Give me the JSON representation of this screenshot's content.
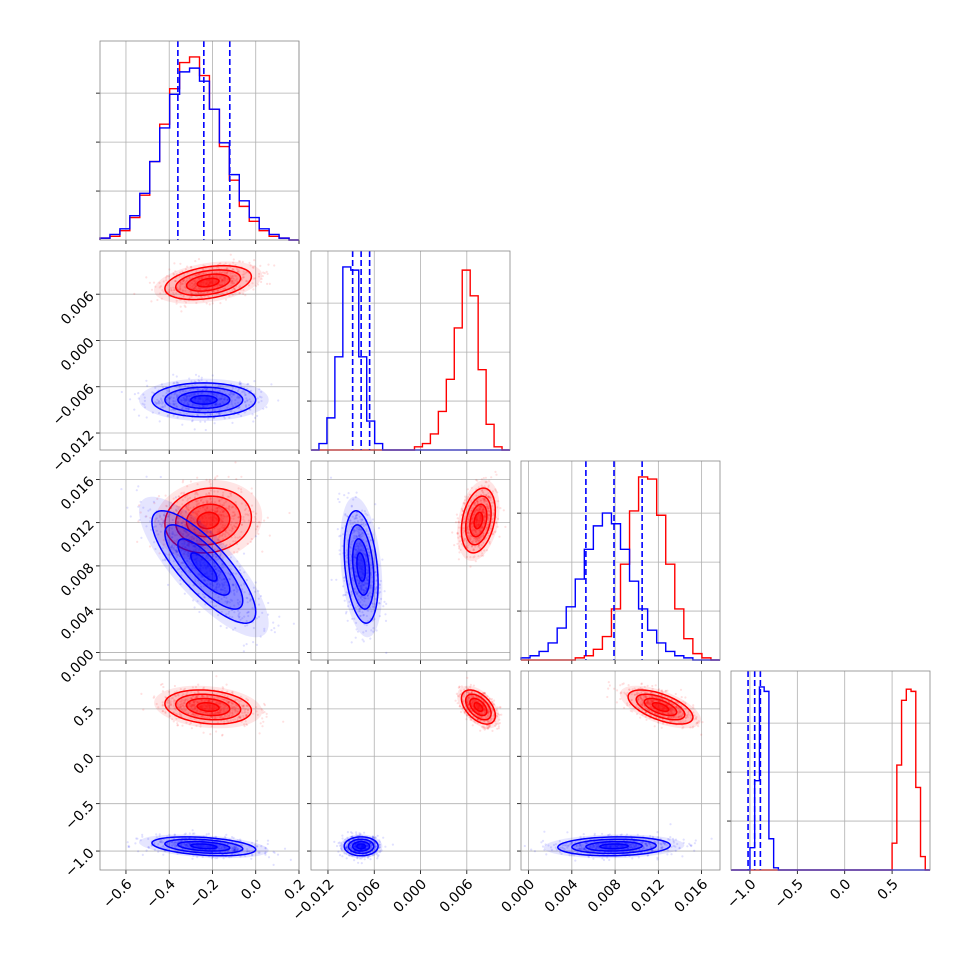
{
  "chart_data": {
    "type": "corner",
    "title": "",
    "colors": {
      "series_a": "#ff0000",
      "series_b": "#0000ff"
    },
    "grid": true,
    "legend": "none",
    "parameters": [
      {
        "index": 0,
        "xlim": [
          -0.72,
          0.2
        ],
        "ticks": [
          -0.6,
          -0.4,
          -0.2,
          0.0,
          0.2
        ],
        "tick_labels": [
          "−0.6",
          "−0.4",
          "−0.2",
          "0.0",
          "0.2"
        ]
      },
      {
        "index": 1,
        "xlim": [
          -0.0142,
          0.0116
        ],
        "ticks": [
          -0.012,
          -0.006,
          0.0,
          0.006
        ],
        "tick_labels": [
          "−0.012",
          "−0.006",
          "0.000",
          "0.006"
        ]
      },
      {
        "index": 2,
        "xlim": [
          -0.0007,
          0.0177
        ],
        "ticks": [
          0.0,
          0.004,
          0.008,
          0.012,
          0.016
        ],
        "tick_labels": [
          "0.000",
          "0.004",
          "0.008",
          "0.012",
          "0.016"
        ]
      },
      {
        "index": 3,
        "xlim": [
          -1.2,
          0.9
        ],
        "ticks": [
          -1.0,
          -0.5,
          0.0,
          0.5
        ],
        "tick_labels": [
          "−1.0",
          "−0.5",
          "0.0",
          "0.5"
        ]
      }
    ],
    "series": [
      {
        "color": "#ff0000",
        "means": [
          -0.22,
          0.0075,
          0.0122,
          0.52
        ],
        "sds": [
          0.1,
          0.0011,
          0.0015,
          0.09
        ],
        "correlations": {
          "0-1": 0.35,
          "0-2": 0.1,
          "0-3": -0.2,
          "1-2": 0.3,
          "1-3": -0.5,
          "2-3": -0.6
        },
        "histograms": [
          {
            "edges": [
              -0.72,
              0.2
            ],
            "counts": [
              1,
              2,
              5,
              12,
              24,
              42,
              62,
              81,
              95,
              98,
              88,
              70,
              50,
              32,
              18,
              10,
              5,
              2,
              1,
              0
            ]
          },
          {
            "edges": [
              -0.0142,
              0.0116
            ],
            "counts": [
              0,
              0,
              0,
              0,
              0,
              0,
              0,
              0,
              0,
              0,
              0,
              0,
              0,
              1,
              2,
              5,
              12,
              22,
              38,
              56,
              48,
              25,
              8,
              1,
              0
            ]
          },
          {
            "edges": [
              -0.0007,
              0.0177
            ],
            "counts": [
              0,
              0,
              0,
              0,
              0,
              0,
              1,
              2,
              5,
              11,
              24,
              45,
              70,
              86,
              85,
              68,
              45,
              24,
              10,
              3,
              1,
              0
            ]
          },
          {
            "edges": [
              -1.2,
              0.9
            ],
            "counts": [
              0,
              0,
              0,
              0,
              0,
              0,
              0,
              0,
              0,
              0,
              0,
              0,
              0,
              0,
              0,
              0,
              0,
              0,
              0,
              0,
              0,
              0,
              0,
              0,
              0,
              0,
              0,
              0,
              0,
              0,
              0,
              0,
              0,
              0,
              12,
              47,
              76,
              81,
              80,
              37,
              6,
              0
            ]
          }
        ]
      },
      {
        "color": "#0000ff",
        "means": [
          -0.24,
          -0.0077,
          0.0079,
          -0.95
        ],
        "sds": [
          0.12,
          0.0011,
          0.0026,
          0.05
        ],
        "correlations": {
          "0-1": 0.0,
          "0-2": -0.8,
          "0-3": -0.35,
          "1-2": -0.3,
          "1-3": 0.0,
          "2-3": 0.1
        },
        "quantiles": [
          [
            -0.36,
            -0.24,
            -0.12
          ],
          [
            -0.0088,
            -0.0077,
            -0.0066
          ],
          [
            0.0053,
            0.0079,
            0.0105
          ],
          [
            -1.02,
            -0.95,
            -0.89
          ]
        ],
        "histograms": [
          {
            "edges": [
              -0.72,
              0.2
            ],
            "counts": [
              1,
              3,
              6,
              13,
              25,
              42,
              60,
              78,
              90,
              92,
              85,
              70,
              52,
              35,
              21,
              12,
              6,
              3,
              1,
              0
            ]
          },
          {
            "edges": [
              -0.0142,
              0.0116
            ],
            "counts": [
              0,
              2,
              10,
              29,
              57,
              56,
              29,
              9,
              2,
              0,
              0,
              0,
              0,
              0,
              0,
              0,
              0,
              0,
              0,
              0,
              0,
              0,
              0,
              0,
              0
            ]
          },
          {
            "edges": [
              -0.0007,
              0.0177
            ],
            "counts": [
              1,
              2,
              4,
              8,
              15,
              25,
              38,
              52,
              63,
              69,
              64,
              52,
              37,
              24,
              14,
              8,
              4,
              2,
              1,
              0,
              0,
              0
            ]
          },
          {
            "edges": [
              -1.2,
              0.9
            ],
            "counts": [
              0,
              0,
              0,
              0,
              10,
              40,
              82,
              80,
              14,
              1,
              0,
              0,
              0,
              0,
              0,
              0,
              0,
              0,
              0,
              0,
              0,
              0,
              0,
              0,
              0,
              0,
              0,
              0,
              0,
              0,
              0,
              0,
              0,
              0,
              0,
              0,
              0,
              0,
              0,
              0,
              0,
              0
            ]
          }
        ]
      }
    ]
  }
}
